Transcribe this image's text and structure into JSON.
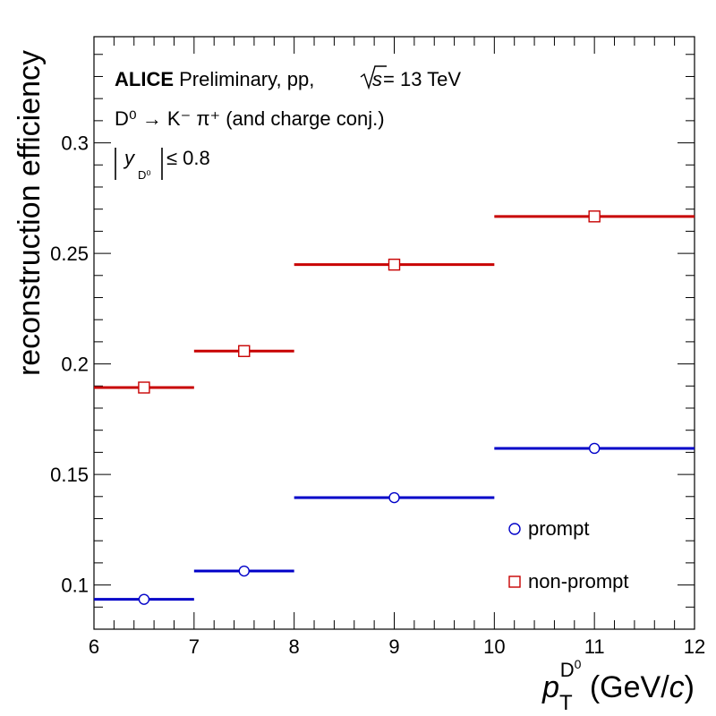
{
  "chart_data": {
    "type": "scatter",
    "title": "",
    "xlabel": {
      "base": "p",
      "sub": "T",
      "sup": "D",
      "sup_sup": "0",
      "unit": "(GeV/",
      "unit_italic": "c",
      "unit_close": ")"
    },
    "ylabel": "reconstruction efficiency",
    "xlim": [
      6,
      12
    ],
    "ylim": [
      0.08,
      0.348
    ],
    "x_ticks": [
      6,
      7,
      8,
      9,
      10,
      11,
      12
    ],
    "y_ticks": [
      0.1,
      0.15,
      0.2,
      0.25,
      0.3
    ],
    "y_tick_labels": [
      "0.1",
      "0.15",
      "0.2",
      "0.25",
      "0.3"
    ],
    "grid": false,
    "legend_position": "bottom-right",
    "annotations": {
      "line1_bold": "ALICE",
      "line1_rest": " Preliminary, pp, ",
      "line1_sqrt_s": "s",
      "line1_energy": " = 13 TeV",
      "line2": "D⁰ → K⁻ π⁺ (and charge conj.)",
      "line3_y": "y",
      "line3_sub": "D⁰",
      "line3_rest": " ≤ 0.8"
    },
    "series": [
      {
        "name": "prompt",
        "color": "#0000c8",
        "marker": "open-circle",
        "bins": [
          [
            6,
            7
          ],
          [
            7,
            8
          ],
          [
            8,
            10
          ],
          [
            10,
            12
          ]
        ],
        "x": [
          6.5,
          7.5,
          9,
          11
        ],
        "y": [
          0.0935,
          0.1063,
          0.1395,
          0.1618
        ]
      },
      {
        "name": "non-prompt",
        "color": "#c80000",
        "marker": "open-square",
        "bins": [
          [
            6,
            7
          ],
          [
            7,
            8
          ],
          [
            8,
            10
          ],
          [
            10,
            12
          ]
        ],
        "x": [
          6.5,
          7.5,
          9,
          11
        ],
        "y": [
          0.1893,
          0.2058,
          0.2449,
          0.2667
        ]
      }
    ]
  }
}
